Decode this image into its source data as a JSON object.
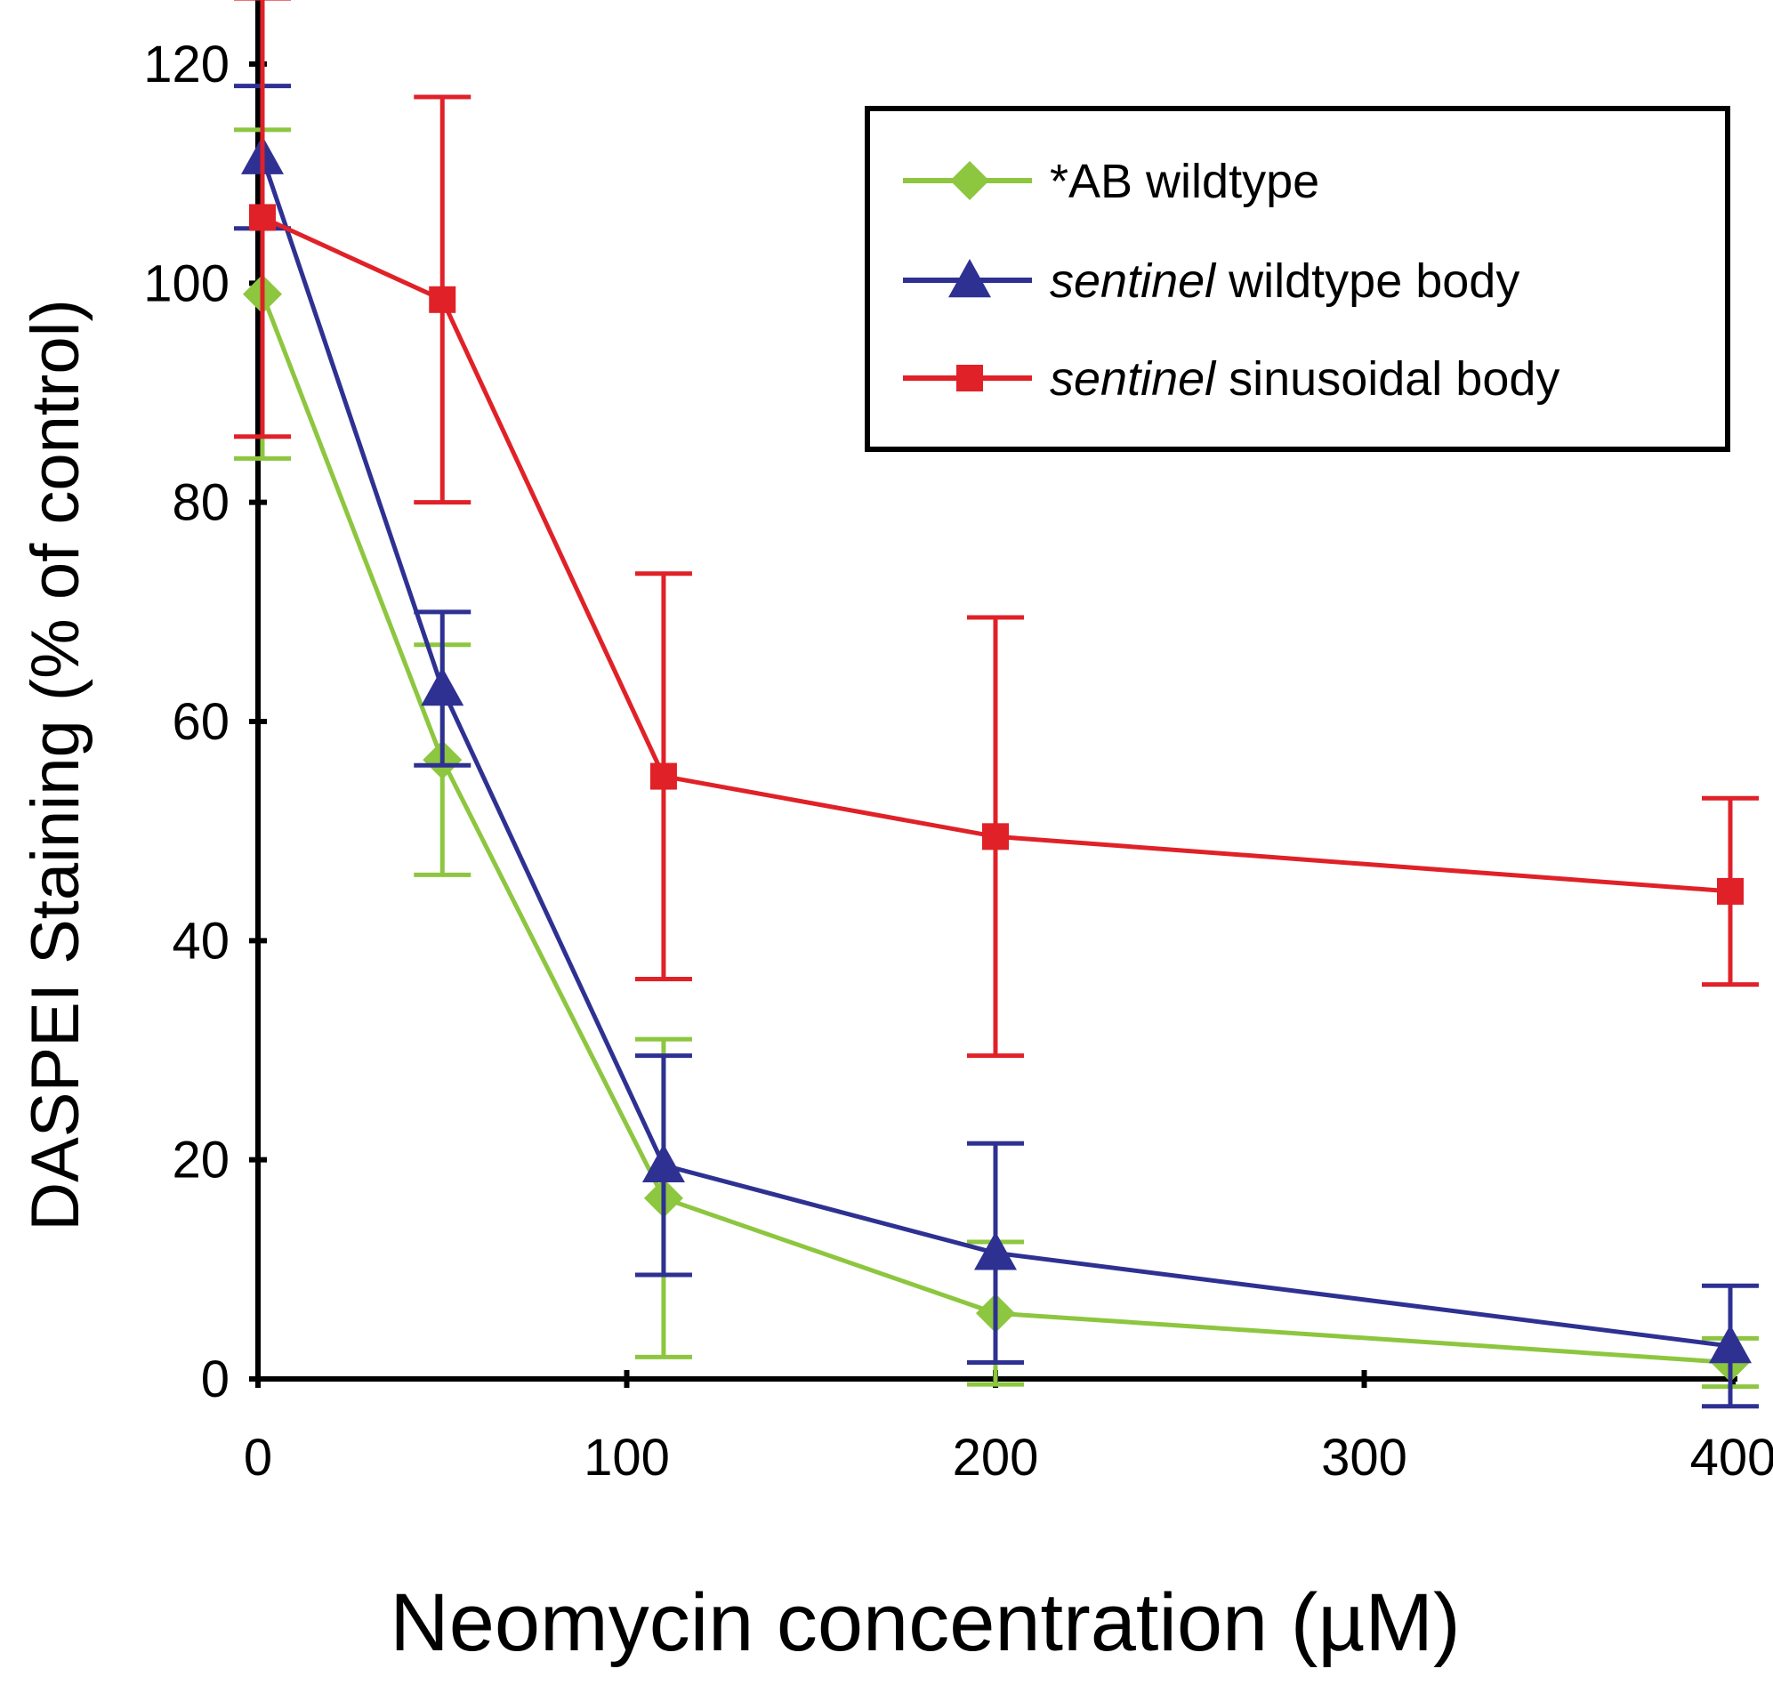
{
  "chart_data": {
    "type": "line",
    "xlabel": "Neomycin concentration (µM)",
    "ylabel": "DASPEI Staining (% of control)",
    "xlim": [
      0,
      410
    ],
    "ylim": [
      0,
      120
    ],
    "x_ticks": [
      "0",
      "100",
      "200",
      "300",
      "400"
    ],
    "y_ticks": [
      "0",
      "20",
      "40",
      "60",
      "80",
      "100",
      "120"
    ],
    "legend_position": "top-right",
    "grid": false,
    "series": [
      {
        "name": "*AB wildtype",
        "name_parts": [
          {
            "text": "*AB wildtype",
            "italic": false
          }
        ],
        "color": "#8dc63f",
        "marker": "diamond",
        "x": [
          0,
          50,
          110,
          200,
          400
        ],
        "y": [
          99,
          56.5,
          16.5,
          6,
          1.5
        ],
        "err": [
          15,
          10.5,
          14.5,
          6.5,
          2.2
        ]
      },
      {
        "name": "sentinel wildtype body",
        "name_parts": [
          {
            "text": "sentinel",
            "italic": true
          },
          {
            "text": " wildtype body",
            "italic": false
          }
        ],
        "color": "#2e3192",
        "marker": "triangle",
        "x": [
          0,
          50,
          110,
          200,
          400
        ],
        "y": [
          111.5,
          63,
          19.5,
          11.5,
          3
        ],
        "err": [
          6.5,
          7,
          10,
          10,
          5.5
        ]
      },
      {
        "name": "sentinel sinusoidal body",
        "name_parts": [
          {
            "text": "sentinel",
            "italic": true
          },
          {
            "text": " sinusoidal body",
            "italic": false
          }
        ],
        "color": "#e02128",
        "marker": "square",
        "x": [
          0,
          50,
          110,
          200,
          400
        ],
        "y": [
          106,
          98.5,
          55,
          49.5,
          44.5
        ],
        "err": [
          20,
          18.5,
          18.5,
          20,
          8.5
        ]
      }
    ]
  }
}
